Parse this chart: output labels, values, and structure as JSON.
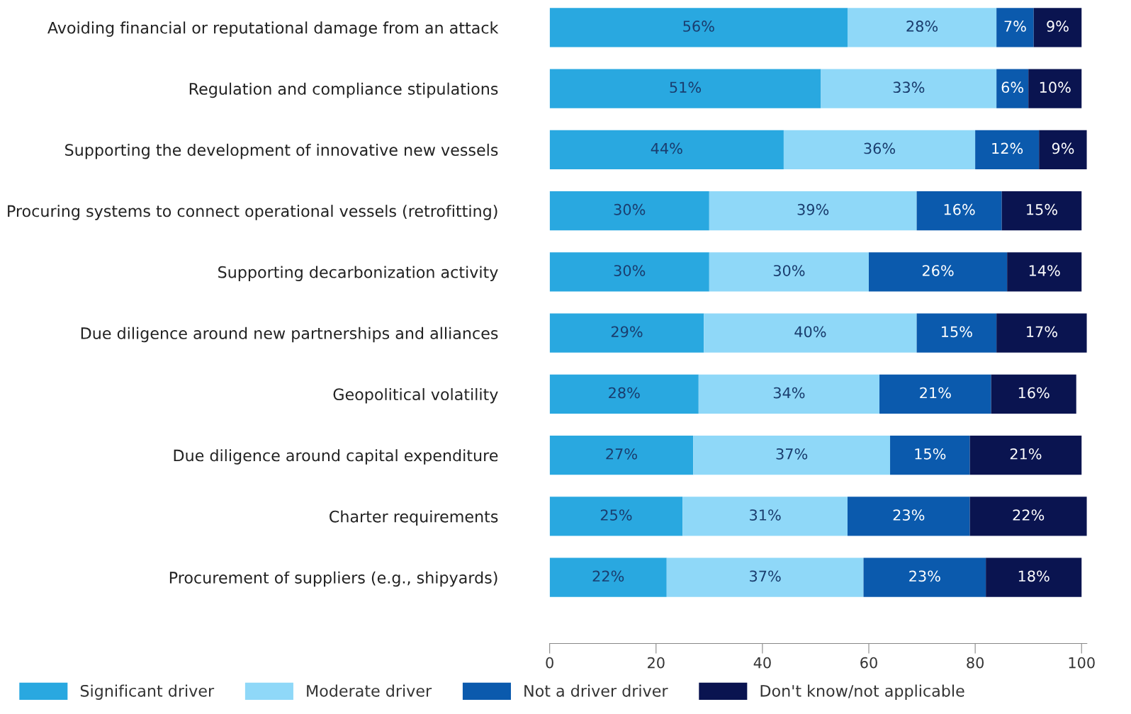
{
  "chart_data": {
    "type": "bar",
    "orientation": "horizontal",
    "stacked": true,
    "categories": [
      "Avoiding financial or reputational damage from an attack",
      "Regulation and compliance stipulations",
      "Supporting the development of innovative new vessels",
      "Procuring systems to connect operational vessels (retrofitting)",
      "Supporting decarbonization activity",
      "Due diligence around new partnerships and alliances",
      "Geopolitical volatility",
      "Due diligence around capital expenditure",
      "Charter requirements",
      "Procurement of suppliers (e.g., shipyards)"
    ],
    "series": [
      {
        "name": "Significant driver",
        "color": "#29a8e0",
        "values": [
          56,
          51,
          44,
          30,
          30,
          29,
          28,
          27,
          25,
          22
        ],
        "value_labels": [
          "56%",
          "51%",
          "44%",
          "30%",
          "30%",
          "29%",
          "28%",
          "27%",
          "25%",
          "22%"
        ]
      },
      {
        "name": "Moderate driver",
        "color": "#8fd8f8",
        "values": [
          28,
          33,
          36,
          39,
          30,
          40,
          34,
          37,
          31,
          37
        ],
        "value_labels": [
          "28%",
          "33%",
          "36%",
          "39%",
          "30%",
          "40%",
          "34%",
          "37%",
          "31%",
          "37%"
        ]
      },
      {
        "name": "Not a driver driver",
        "color": "#0b5aad",
        "values": [
          7,
          6,
          12,
          16,
          26,
          15,
          21,
          15,
          23,
          23
        ],
        "value_labels": [
          "7%",
          "6%",
          "12%",
          "16%",
          "26%",
          "15%",
          "21%",
          "15%",
          "23%",
          "23%"
        ]
      },
      {
        "name": "Don't know/not applicable",
        "color": "#0a1450",
        "values": [
          9,
          10,
          9,
          15,
          14,
          17,
          16,
          21,
          22,
          18
        ],
        "value_labels": [
          "9%",
          "10%",
          "9%",
          "15%",
          "14%",
          "17%",
          "16%",
          "21%",
          "22%",
          "18%"
        ]
      }
    ],
    "xlim": [
      0,
      101
    ],
    "xticks": [
      0,
      20,
      40,
      60,
      80,
      100
    ],
    "grid": false,
    "legend": "bottom"
  }
}
